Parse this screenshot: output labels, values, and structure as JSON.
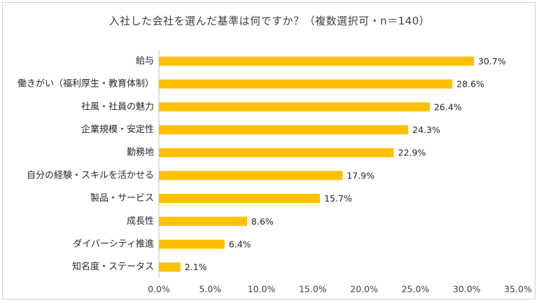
{
  "chart_data": {
    "type": "bar",
    "orientation": "horizontal",
    "title": "入社した会社を選んだ基準は何ですか？（複数選択可・n＝140）",
    "categories": [
      "給与",
      "働きがい（福利厚生・教育体制）",
      "社風・社員の魅力",
      "企業規模・安定性",
      "勤務地",
      "自分の経験・スキルを活かせる",
      "製品・サービス",
      "成長性",
      "ダイバーシティ推進",
      "知名度・ステータス"
    ],
    "values": [
      30.7,
      28.6,
      26.4,
      24.3,
      22.9,
      17.9,
      15.7,
      8.6,
      6.4,
      2.1
    ],
    "value_labels": [
      "30.7%",
      "28.6%",
      "26.4%",
      "24.3%",
      "22.9%",
      "17.9%",
      "15.7%",
      "8.6%",
      "6.4%",
      "2.1%"
    ],
    "xlim": [
      0,
      35
    ],
    "x_ticks": [
      0,
      5,
      10,
      15,
      20,
      25,
      30,
      35
    ],
    "x_tick_labels": [
      "0.0%",
      "5.0%",
      "10.0%",
      "15.0%",
      "20.0%",
      "25.0%",
      "30.0%",
      "35.0%"
    ],
    "xlabel": "",
    "ylabel": "",
    "grid": false,
    "bar_color": "#FFC000"
  }
}
